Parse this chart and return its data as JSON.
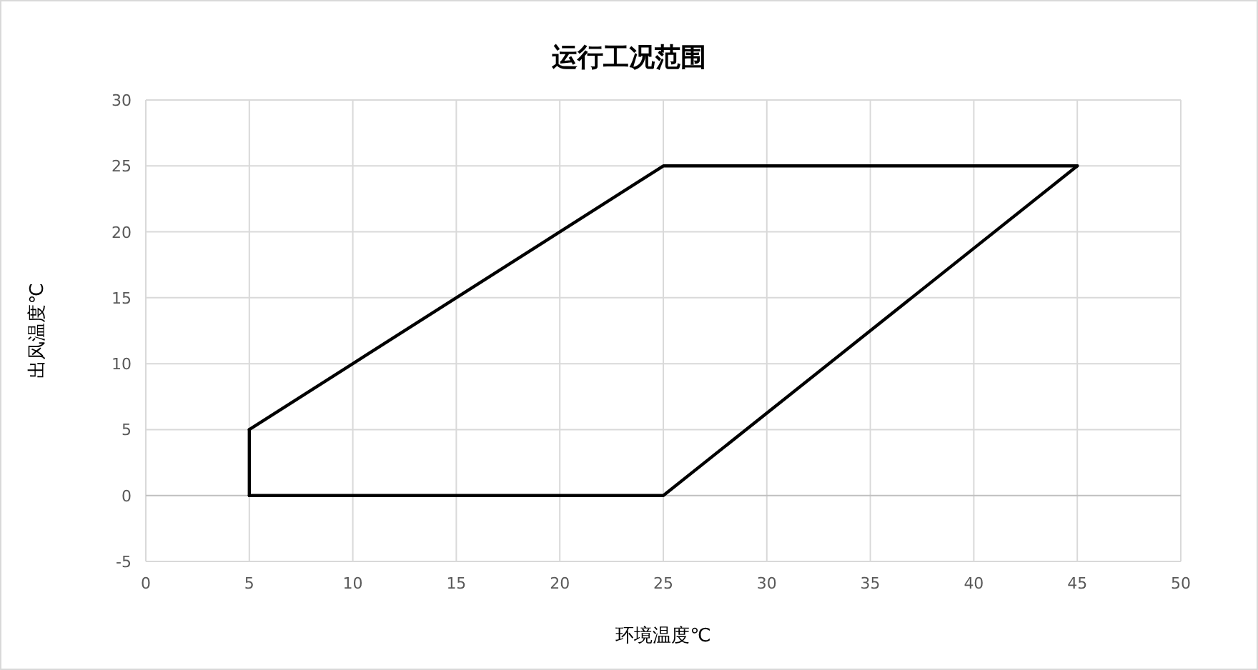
{
  "chart_data": {
    "type": "line",
    "title": "运行工况范围",
    "xlabel": "环境温度℃",
    "ylabel": "出风温度℃",
    "xlim": [
      0,
      50
    ],
    "ylim": [
      -5,
      30
    ],
    "xticks": [
      0,
      5,
      10,
      15,
      20,
      25,
      30,
      35,
      40,
      45,
      50
    ],
    "yticks": [
      -5,
      0,
      5,
      10,
      15,
      20,
      25,
      30
    ],
    "grid": true,
    "marker": "none",
    "line_style": "solid",
    "series": [
      {
        "color": "#000000",
        "x": [
          5,
          25,
          45
        ],
        "values": [
          5,
          25,
          25
        ]
      },
      {
        "color": "#000000",
        "x": [
          5,
          25,
          45
        ],
        "values": [
          0,
          0,
          25
        ]
      },
      {
        "color": "#000000",
        "x": [
          5,
          5
        ],
        "values": [
          0,
          5
        ]
      }
    ]
  }
}
